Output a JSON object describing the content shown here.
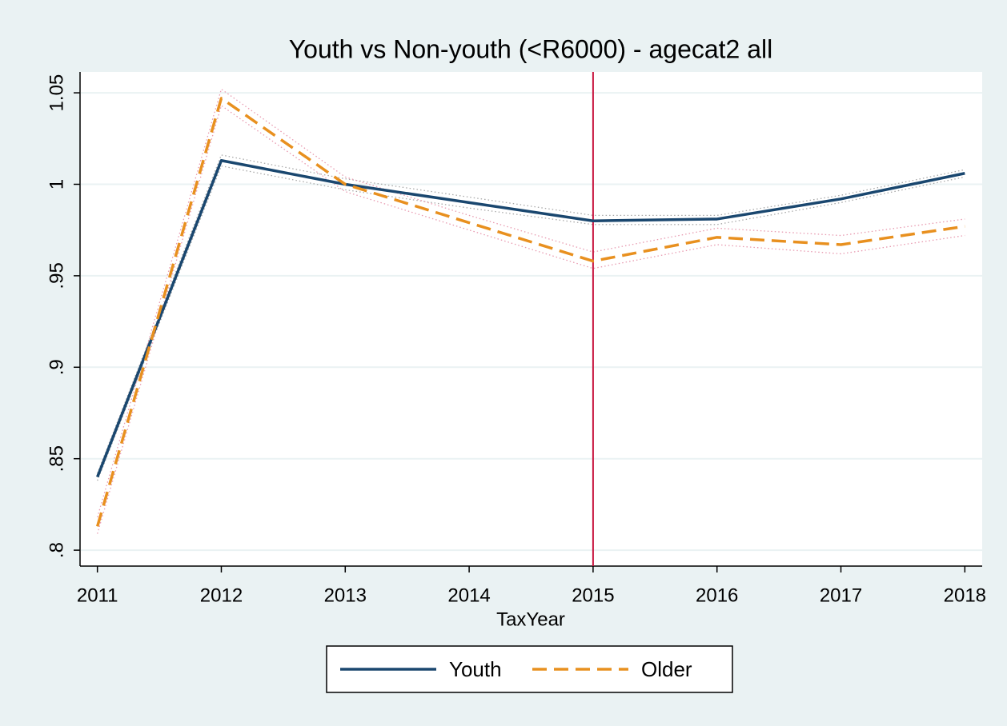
{
  "chart_data": {
    "type": "line",
    "title": "Youth vs Non-youth (<R6000) - agecat2 all",
    "x_label": "TaxYear",
    "x": [
      2011,
      2012,
      2013,
      2014,
      2015,
      2016,
      2017,
      2018
    ],
    "xlim": [
      2010.86,
      2018.14
    ],
    "xticks": [
      2011,
      2012,
      2013,
      2014,
      2015,
      2016,
      2017,
      2018
    ],
    "ylim": [
      0.7913,
      1.0614
    ],
    "yticks": [
      {
        "value": 0.8,
        "label": ".8"
      },
      {
        "value": 0.85,
        "label": ".85"
      },
      {
        "value": 0.9,
        "label": ".9"
      },
      {
        "value": 0.95,
        "label": ".95"
      },
      1,
      1.05
    ],
    "grid": true,
    "vline": 2015,
    "vline_color": "#c8163f",
    "series": [
      {
        "name": "Youth",
        "color": "#1a476f",
        "dash": "solid",
        "values": [
          0.84,
          1.013,
          1.0,
          0.99,
          0.98,
          0.981,
          0.992,
          1.006
        ],
        "ci_color": "#a9a9a9",
        "ci_upper": [
          0.842,
          1.016,
          1.003,
          0.993,
          0.983,
          0.983,
          0.994,
          1.008
        ],
        "ci_lower": [
          0.838,
          1.01,
          0.997,
          0.987,
          0.978,
          0.978,
          0.99,
          1.004
        ]
      },
      {
        "name": "Older",
        "color": "#e8901f",
        "dash": "dashed",
        "values": [
          0.813,
          1.047,
          1.0,
          0.979,
          0.958,
          0.971,
          0.967,
          0.977
        ],
        "ci_color": "#e89ab0",
        "ci_upper": [
          0.818,
          1.052,
          1.004,
          0.983,
          0.963,
          0.976,
          0.972,
          0.981
        ],
        "ci_lower": [
          0.809,
          1.043,
          0.996,
          0.975,
          0.954,
          0.967,
          0.962,
          0.972
        ]
      }
    ]
  }
}
